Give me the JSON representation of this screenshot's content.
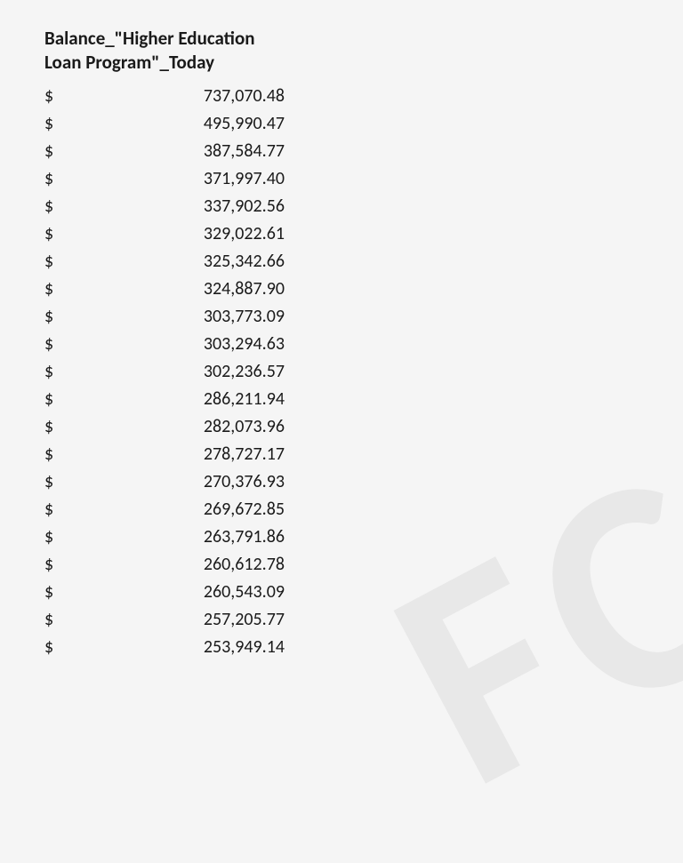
{
  "header": {
    "line1": "Balance_\"Higher Education",
    "line2": "Loan Program\"_Today"
  },
  "currency_symbol": "$",
  "rows": [
    "737,070.48",
    "495,990.47",
    "387,584.77",
    "371,997.40",
    "337,902.56",
    "329,022.61",
    "325,342.66",
    "324,887.90",
    "303,773.09",
    "303,294.63",
    "302,236.57",
    "286,211.94",
    "282,073.96",
    "278,727.17",
    "270,376.93",
    "269,672.85",
    "263,791.86",
    "260,612.78",
    "260,543.09",
    "257,205.77",
    "253,949.14"
  ],
  "watermark_text": "FC",
  "style": {
    "background_color": "#f5f5f5",
    "text_color": "#1a1a1a",
    "watermark_color": "#e8e8e8",
    "header_fontsize": 21,
    "row_fontsize": 20
  }
}
